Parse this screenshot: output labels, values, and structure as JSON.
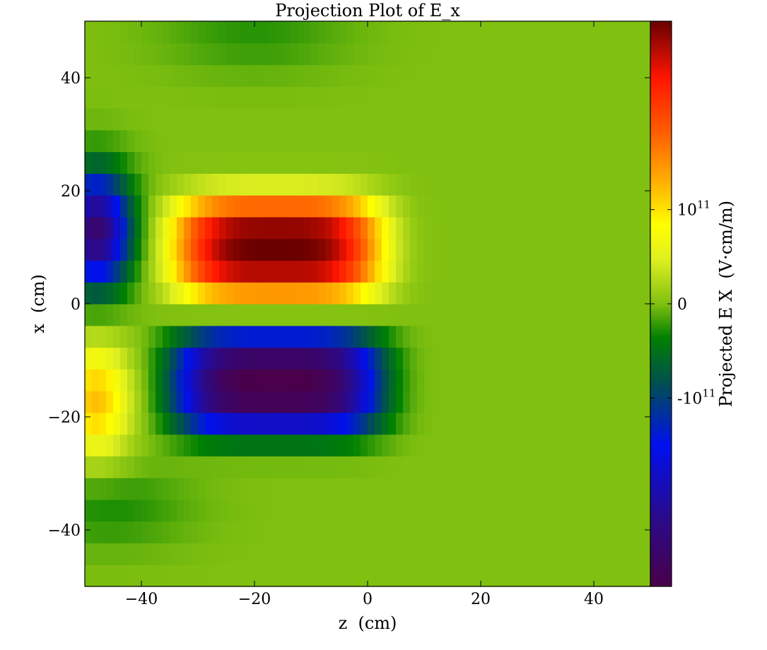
{
  "chart_data": {
    "type": "heatmap",
    "title": "Projection Plot of E_x",
    "xlabel": "z  (cm)",
    "ylabel": "x  (cm)",
    "xlim": [
      -50,
      50
    ],
    "ylim": [
      -50,
      50
    ],
    "xticks": [
      {
        "value": -40,
        "label": "−40"
      },
      {
        "value": -20,
        "label": "−20"
      },
      {
        "value": 0,
        "label": "0"
      },
      {
        "value": 20,
        "label": "20"
      },
      {
        "value": 40,
        "label": "40"
      }
    ],
    "yticks": [
      {
        "value": 40,
        "label": "40"
      },
      {
        "value": 20,
        "label": "20"
      },
      {
        "value": 0,
        "label": "0"
      },
      {
        "value": -20,
        "label": "−20"
      },
      {
        "value": -40,
        "label": "−40"
      }
    ],
    "colorbar": {
      "label": "Projected E X  (V·cm/m)",
      "range": [
        -300000000000.0,
        300000000000.0
      ],
      "ticks": [
        {
          "value": 100000000000.0,
          "mantissa": "10",
          "exp": "11"
        },
        {
          "value": 0,
          "mantissa": "0",
          "exp": ""
        },
        {
          "value": -100000000000.0,
          "mantissa": "-10",
          "exp": "11"
        }
      ],
      "colormap": [
        {
          "pos": 0.0,
          "color": "#4a004a"
        },
        {
          "pos": 0.12,
          "color": "#2a0a8a"
        },
        {
          "pos": 0.25,
          "color": "#0010ee"
        },
        {
          "pos": 0.36,
          "color": "#005050"
        },
        {
          "pos": 0.44,
          "color": "#008000"
        },
        {
          "pos": 0.5,
          "color": "#80c010"
        },
        {
          "pos": 0.58,
          "color": "#e0f020"
        },
        {
          "pos": 0.64,
          "color": "#ffff00"
        },
        {
          "pos": 0.7,
          "color": "#ffbf00"
        },
        {
          "pos": 0.8,
          "color": "#ff6000"
        },
        {
          "pos": 0.9,
          "color": "#ff1500"
        },
        {
          "pos": 1.0,
          "color": "#6a0000"
        }
      ]
    },
    "features": [
      {
        "z0": -16,
        "x0": 10,
        "sz": 18,
        "sx": 9,
        "value": 300000000000.0,
        "shape": "super-gaussian"
      },
      {
        "z0": -16,
        "x0": -14,
        "sz": 18,
        "sx": 9,
        "value": -300000000000.0,
        "shape": "super-gaussian"
      },
      {
        "z0": -48,
        "x0": 13,
        "sz": 6,
        "sx": 10,
        "value": -260000000000.0,
        "shape": "gaussian"
      },
      {
        "z0": -48,
        "x0": -17,
        "sz": 6,
        "sx": 10,
        "value": 120000000000.0,
        "shape": "gaussian"
      },
      {
        "z0": -46,
        "x0": -36,
        "sz": 14,
        "sx": 7,
        "value": -30000000000.0,
        "shape": "gaussian"
      },
      {
        "z0": -20,
        "x0": 48,
        "sz": 16,
        "sx": 7,
        "value": -25000000000.0,
        "shape": "gaussian"
      }
    ]
  }
}
